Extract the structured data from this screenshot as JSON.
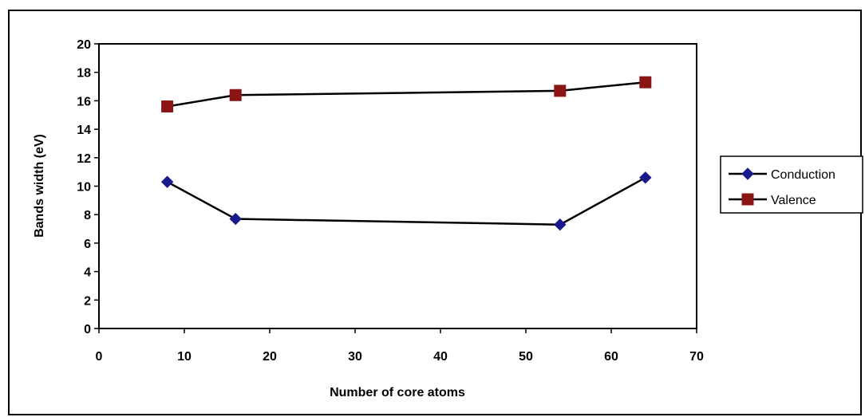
{
  "chart_data": {
    "type": "line",
    "title": "",
    "xlabel": "Number of core atoms",
    "ylabel": "Bands width (eV)",
    "xlim": [
      0,
      70
    ],
    "ylim": [
      0,
      20
    ],
    "x_ticks": [
      0,
      10,
      20,
      30,
      40,
      50,
      60,
      70
    ],
    "y_ticks": [
      0,
      2,
      4,
      6,
      8,
      10,
      12,
      14,
      16,
      18,
      20
    ],
    "grid": false,
    "legend_position": "right",
    "series": [
      {
        "name": "Conduction",
        "color": "#1a1a8c",
        "marker": "diamond",
        "x": [
          8,
          16,
          54,
          64
        ],
        "y": [
          10.3,
          7.7,
          7.3,
          10.6
        ]
      },
      {
        "name": "Valence",
        "color": "#8b1414",
        "marker": "square",
        "x": [
          8,
          16,
          54,
          64
        ],
        "y": [
          15.6,
          16.4,
          16.7,
          17.3
        ]
      }
    ]
  }
}
